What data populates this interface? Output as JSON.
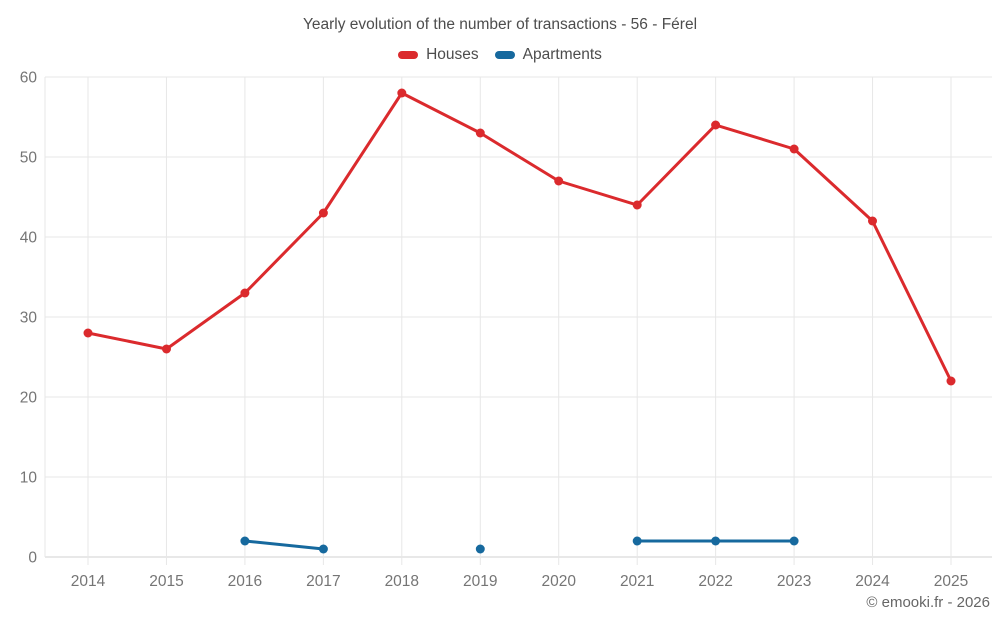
{
  "chart_data": {
    "type": "line",
    "title": "Yearly evolution of the number of transactions - 56 - Férel",
    "categories": [
      "2014",
      "2015",
      "2016",
      "2017",
      "2018",
      "2019",
      "2020",
      "2021",
      "2022",
      "2023",
      "2024",
      "2025"
    ],
    "series": [
      {
        "name": "Houses",
        "color": "#db2a2d",
        "values": [
          28,
          26,
          33,
          43,
          58,
          53,
          47,
          44,
          54,
          51,
          42,
          22
        ]
      },
      {
        "name": "Apartments",
        "color": "#16699e",
        "values": [
          null,
          null,
          2,
          1,
          null,
          1,
          null,
          2,
          2,
          2,
          null,
          null
        ]
      }
    ],
    "xlabel": "",
    "ylabel": "",
    "ylim": [
      0,
      60
    ],
    "yticks": [
      0,
      10,
      20,
      30,
      40,
      50,
      60
    ],
    "grid": true,
    "legend_position": "top"
  },
  "footer": {
    "credit": "© emooki.fr - 2026"
  }
}
